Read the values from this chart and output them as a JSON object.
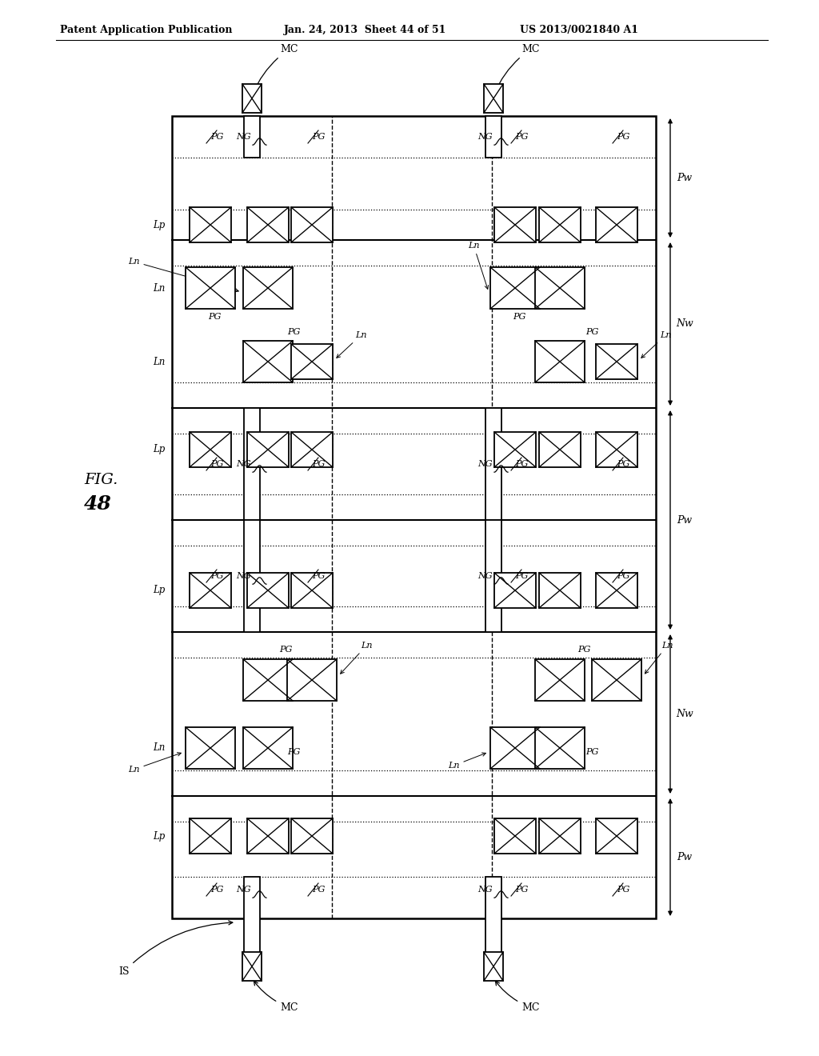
{
  "title_left": "Patent Application Publication",
  "title_center": "Jan. 24, 2013  Sheet 44 of 51",
  "title_right": "US 2013/0021840 A1",
  "fig_number": "48",
  "background": "#ffffff",
  "line_color": "#000000"
}
